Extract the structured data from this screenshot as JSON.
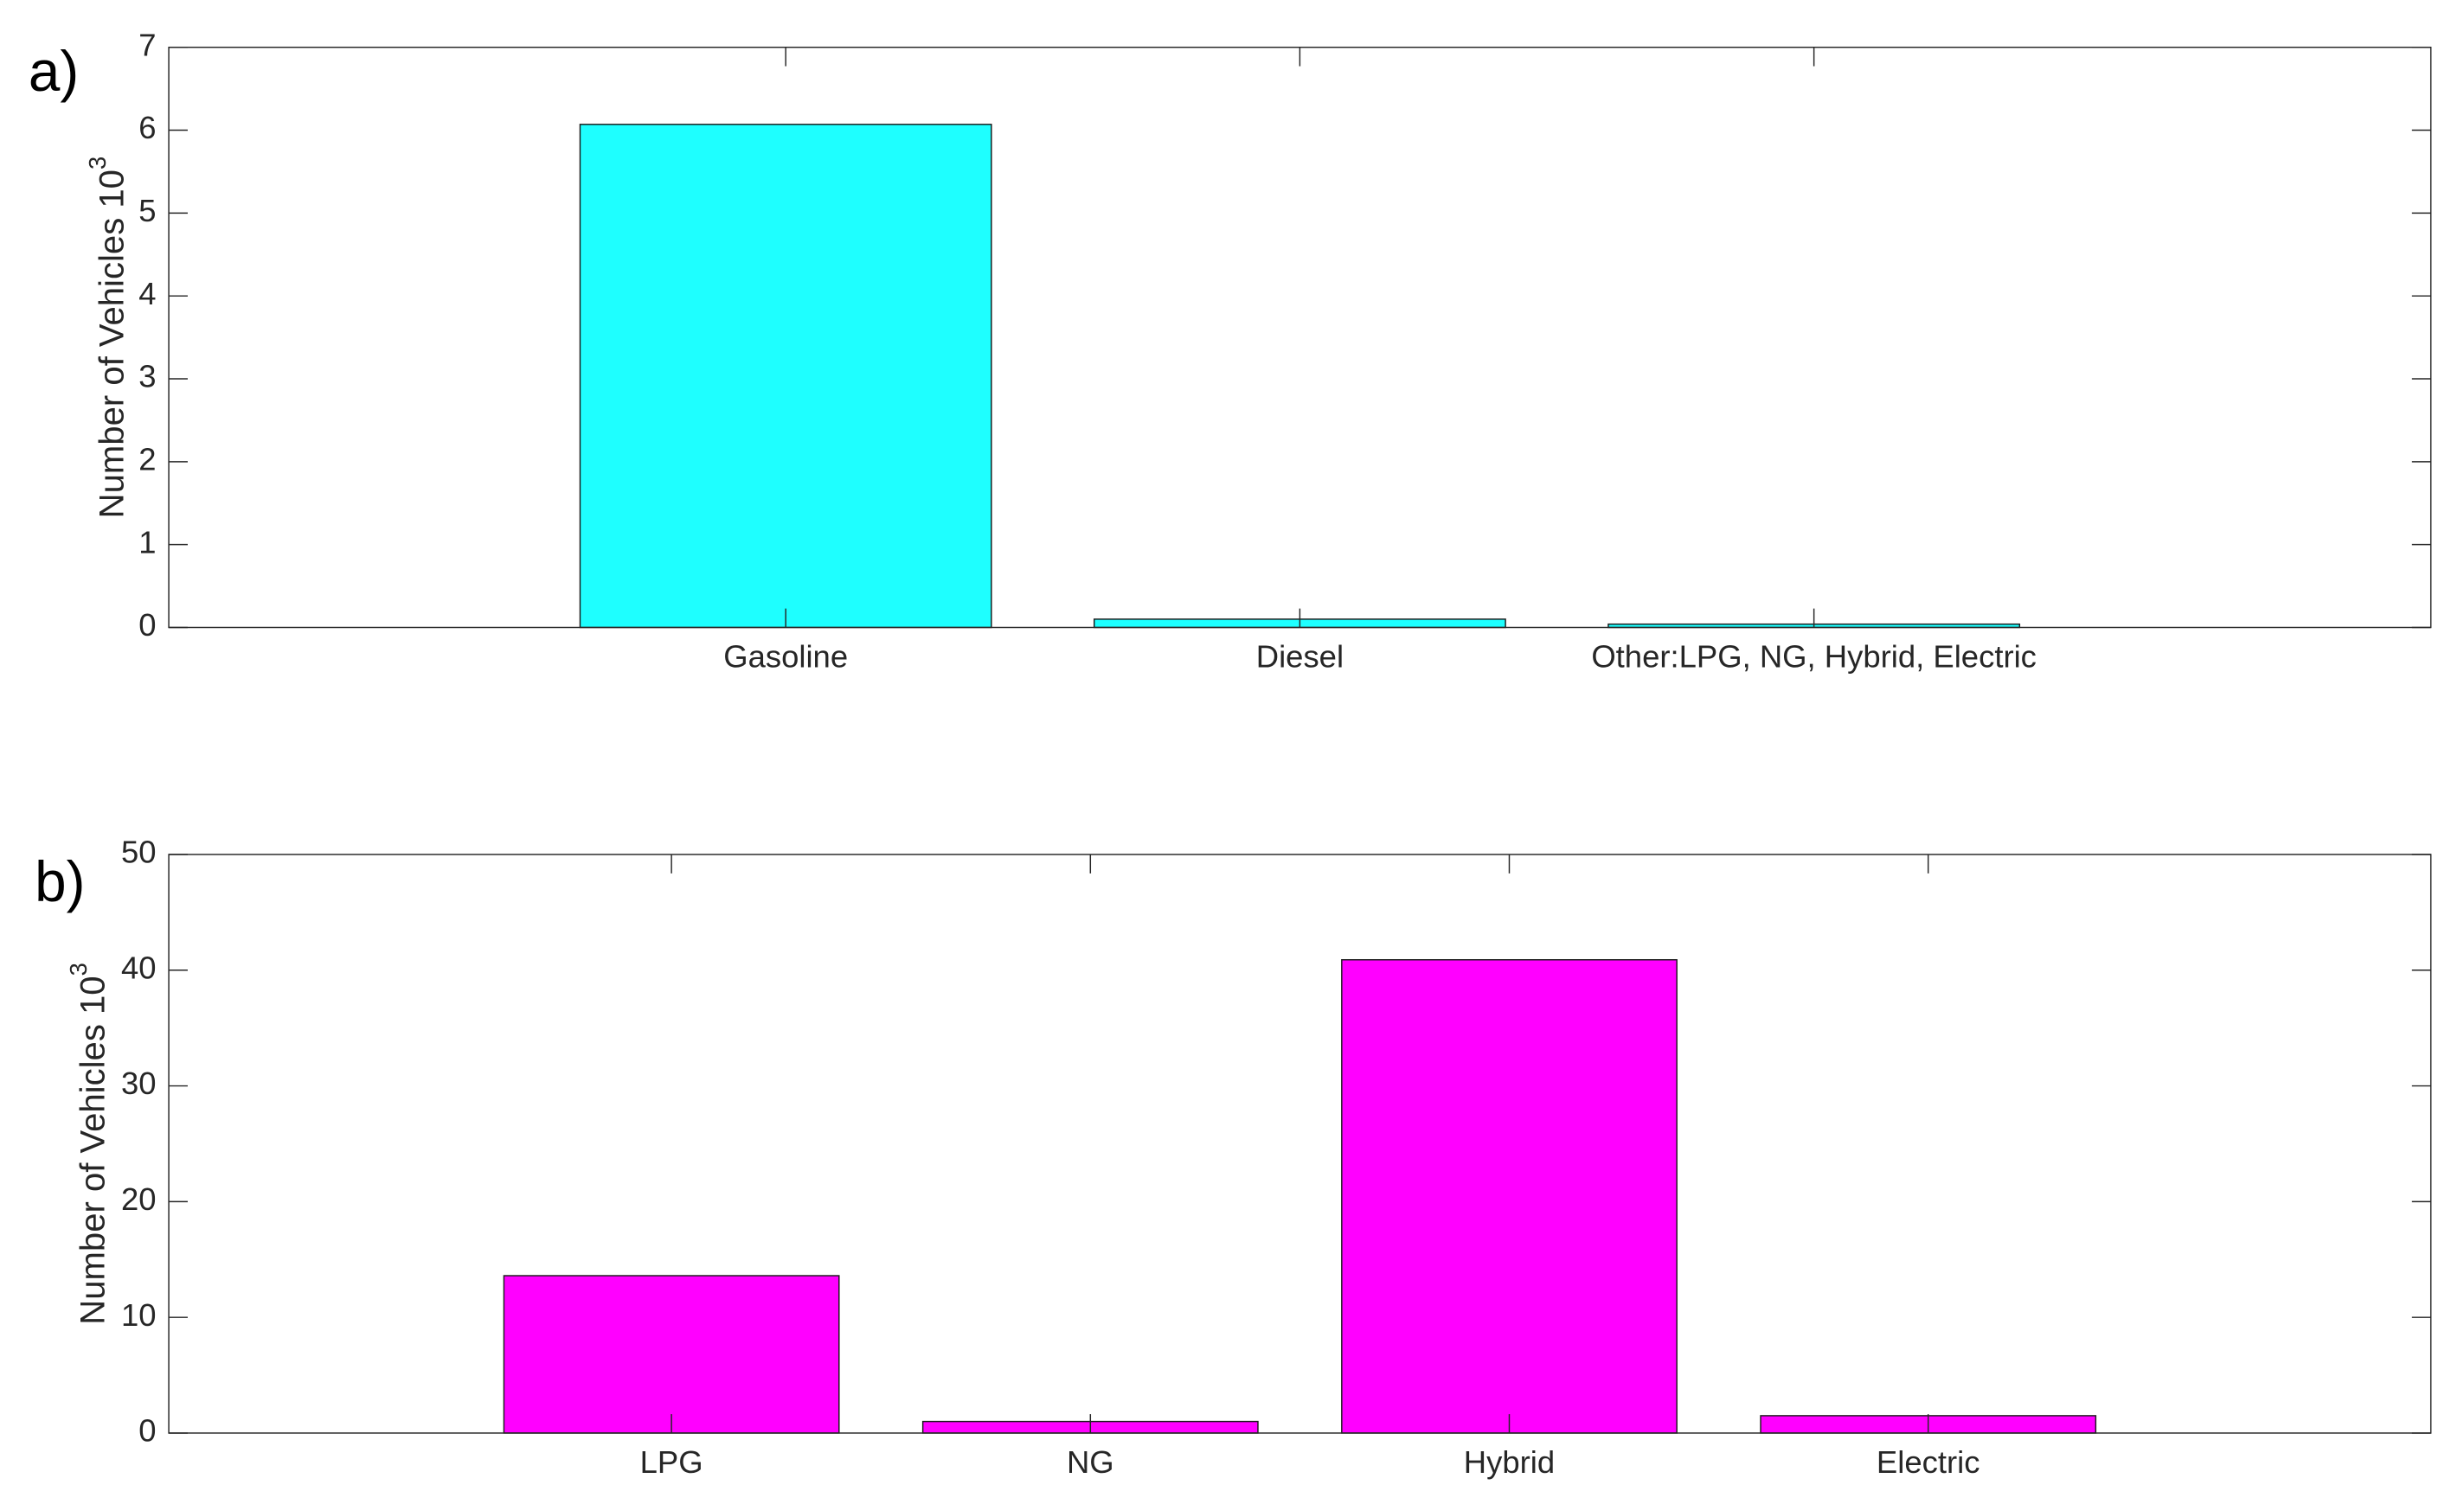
{
  "chart_data": [
    {
      "type": "bar",
      "label": "a)",
      "ylabel": "Number of Vehicles 10",
      "ylabel_superscript": "3",
      "categories": [
        "Gasoline",
        "Diesel",
        "Other:LPG, NG, Hybrid, Electric"
      ],
      "values": [
        6.07,
        0.1,
        0.04
      ],
      "color": "#1effff",
      "ylim": [
        0,
        7
      ],
      "yticks": [
        0,
        1,
        2,
        3,
        4,
        5,
        6,
        7
      ]
    },
    {
      "type": "bar",
      "label": "b)",
      "ylabel": "Number of Vehicles 10",
      "ylabel_superscript": "3",
      "categories": [
        "LPG",
        "NG",
        "Hybrid",
        "Electric"
      ],
      "values": [
        13.6,
        1.0,
        40.9,
        1.5
      ],
      "color": "#ff00ff",
      "ylim": [
        0,
        50
      ],
      "yticks": [
        0,
        10,
        20,
        30,
        40,
        50
      ]
    }
  ]
}
